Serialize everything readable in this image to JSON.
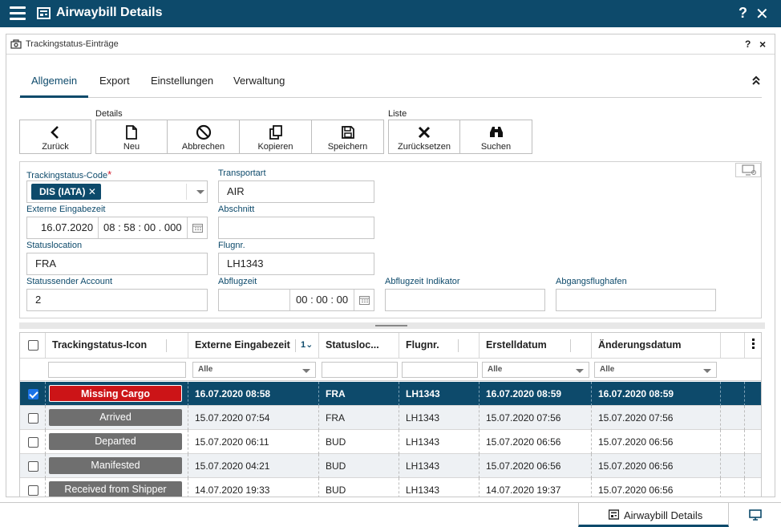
{
  "app": {
    "title": "Airwaybill Details"
  },
  "panel": {
    "title": "Trackingstatus-Einträge",
    "help": "?",
    "close": "×"
  },
  "tabs": [
    {
      "label": "Allgemein",
      "active": true
    },
    {
      "label": "Export"
    },
    {
      "label": "Einstellungen"
    },
    {
      "label": "Verwaltung"
    }
  ],
  "toolbar": {
    "groups": {
      "details": "Details",
      "liste": "Liste"
    },
    "buttons": [
      {
        "label": "Zurück",
        "icon": "chevron-left-icon"
      },
      {
        "label": "Neu",
        "icon": "new-document-icon"
      },
      {
        "label": "Abbrechen",
        "icon": "cancel-icon"
      },
      {
        "label": "Kopieren",
        "icon": "copy-icon"
      },
      {
        "label": "Speichern",
        "icon": "save-icon"
      },
      {
        "label": "Zurücksetzen",
        "icon": "reset-x-icon"
      },
      {
        "label": "Suchen",
        "icon": "binoculars-icon"
      }
    ]
  },
  "form": {
    "trackingstatus_code": {
      "label": "Trackingstatus-Code",
      "required": "*",
      "value": "DIS (IATA)"
    },
    "transportart": {
      "label": "Transportart",
      "value": "AIR"
    },
    "externe_eingabezeit": {
      "label": "Externe Eingabezeit",
      "date": "16.07.2020",
      "time": "08 : 58 : 00 . 000"
    },
    "abschnitt": {
      "label": "Abschnitt",
      "value": ""
    },
    "statuslocation": {
      "label": "Statuslocation",
      "value": "FRA"
    },
    "flugnr": {
      "label": "Flugnr.",
      "value": "LH1343"
    },
    "statussender_account": {
      "label": "Statussender Account",
      "value": "2"
    },
    "abflugzeit": {
      "label": "Abflugzeit",
      "date": "",
      "time": "00 : 00 : 00"
    },
    "abflugzeit_indikator": {
      "label": "Abflugzeit Indikator",
      "value": ""
    },
    "abgangsflughafen": {
      "label": "Abgangsflughafen",
      "value": ""
    }
  },
  "grid": {
    "columns": [
      "Trackingstatus-Icon",
      "Externe Eingabezeit",
      "Statusloc...",
      "Flugnr.",
      "Erstelldatum",
      "Änderungsdatum"
    ],
    "sort_indicator": "1",
    "filter_placeholder": "Alle",
    "colors": {
      "selected_row": "#0d4a6b",
      "missing": "#cc1417",
      "default_badge": "#6f6f6f"
    },
    "rows": [
      {
        "checked": true,
        "status": "Missing Cargo",
        "status_color": "#cc1417",
        "time": "16.07.2020 08:58",
        "loc": "FRA",
        "flight": "LH1343",
        "created": "16.07.2020 08:59",
        "changed": "16.07.2020 08:59",
        "selected": true
      },
      {
        "checked": false,
        "status": "Arrived",
        "status_color": "#6f6f6f",
        "time": "15.07.2020 07:54",
        "loc": "FRA",
        "flight": "LH1343",
        "created": "15.07.2020 07:56",
        "changed": "15.07.2020 07:56"
      },
      {
        "checked": false,
        "status": "Departed",
        "status_color": "#6f6f6f",
        "time": "15.07.2020 06:11",
        "loc": "BUD",
        "flight": "LH1343",
        "created": "15.07.2020 06:56",
        "changed": "15.07.2020 06:56"
      },
      {
        "checked": false,
        "status": "Manifested",
        "status_color": "#6f6f6f",
        "time": "15.07.2020 04:21",
        "loc": "BUD",
        "flight": "LH1343",
        "created": "15.07.2020 06:56",
        "changed": "15.07.2020 06:56"
      },
      {
        "checked": false,
        "status": "Received from Shipper",
        "status_color": "#6f6f6f",
        "time": "14.07.2020 19:33",
        "loc": "BUD",
        "flight": "LH1343",
        "created": "14.07.2020 19:37",
        "changed": "15.07.2020 06:56"
      }
    ]
  },
  "bottom": {
    "tab_label": "Airwaybill Details"
  }
}
